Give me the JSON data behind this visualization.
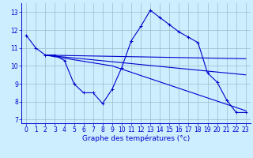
{
  "xlabel": "Graphe des températures (°c)",
  "bg_color": "#cceeff",
  "grid_color": "#99bbcc",
  "line_color": "#0000cc",
  "xlim": [
    -0.5,
    23.5
  ],
  "ylim": [
    6.8,
    13.5
  ],
  "yticks": [
    7,
    8,
    9,
    10,
    11,
    12,
    13
  ],
  "xticks": [
    0,
    1,
    2,
    3,
    4,
    5,
    6,
    7,
    8,
    9,
    10,
    11,
    12,
    13,
    14,
    15,
    16,
    17,
    18,
    19,
    20,
    21,
    22,
    23
  ],
  "series_main": {
    "x": [
      0,
      1,
      2,
      3,
      4,
      5,
      6,
      7,
      8,
      9,
      10,
      11,
      12,
      13,
      14,
      15,
      16,
      17,
      18,
      19,
      20,
      21,
      22,
      23
    ],
    "y": [
      11.7,
      11.0,
      10.6,
      10.6,
      10.3,
      9.0,
      8.5,
      8.5,
      7.9,
      8.7,
      9.9,
      11.4,
      12.2,
      13.1,
      12.7,
      12.3,
      11.9,
      11.6,
      11.3,
      9.6,
      9.1,
      8.1,
      7.4,
      7.4
    ]
  },
  "series_lines": [
    {
      "x": [
        2,
        23
      ],
      "y": [
        10.6,
        10.4
      ]
    },
    {
      "x": [
        2,
        23
      ],
      "y": [
        10.6,
        9.5
      ]
    },
    {
      "x": [
        2,
        9,
        23
      ],
      "y": [
        10.6,
        10.0,
        7.5
      ]
    }
  ]
}
